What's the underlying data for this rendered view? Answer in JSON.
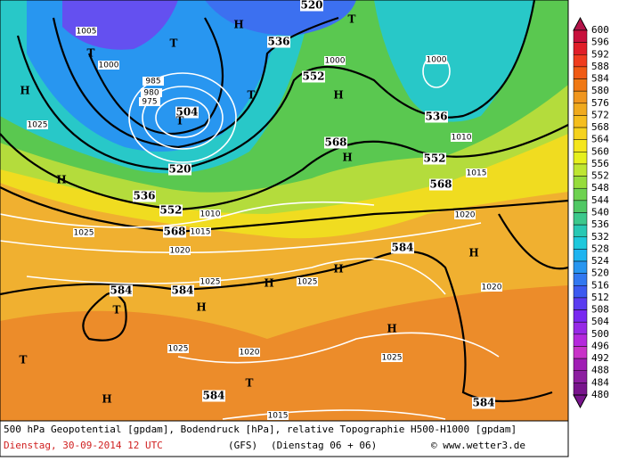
{
  "map": {
    "labels": [
      552,
      552,
      552,
      536,
      536,
      536,
      520,
      520,
      504,
      568,
      568,
      568,
      584,
      584,
      584,
      584,
      584,
      1025,
      1025,
      1025,
      1025,
      1025,
      1025,
      1020,
      1020,
      1020,
      1020,
      1015,
      1015,
      1015,
      1010,
      1010,
      1005,
      1000,
      1000,
      1000,
      985,
      980,
      975,
      "H",
      "H",
      "H",
      "H",
      "H",
      "H",
      "H",
      "H",
      "H",
      "H",
      "H",
      "T",
      "T",
      "T",
      "T",
      "T",
      "T",
      "T",
      "T"
    ],
    "legend": {
      "values": [
        600,
        596,
        592,
        588,
        584,
        580,
        576,
        572,
        568,
        564,
        560,
        556,
        552,
        548,
        544,
        540,
        536,
        532,
        528,
        524,
        520,
        516,
        512,
        508,
        504,
        500,
        496,
        492,
        488,
        484,
        480
      ],
      "colors": [
        "#b4144a",
        "#c8103c",
        "#e01e28",
        "#f03c1e",
        "#f05a14",
        "#f07814",
        "#f0961e",
        "#f0aa1e",
        "#f5be1e",
        "#f5d21e",
        "#f5e61e",
        "#e6f01e",
        "#bee632",
        "#96dc3c",
        "#6ed250",
        "#50c864",
        "#3cc88c",
        "#28c8b4",
        "#1ec8dc",
        "#1eb4f0",
        "#2896f0",
        "#3278f0",
        "#3c5af0",
        "#5a3cf0",
        "#7828f0",
        "#9628e6",
        "#b428dc",
        "#c832c8",
        "#a01eb4",
        "#8c1ea0",
        "#78148c"
      ]
    },
    "footer": {
      "description": "500 hPa Geopotential [gpdam], Bodendruck [hPa], relative Topographie H500-H1000 [gpdam]",
      "date": "Dienstag, 30-09-2014  12 UTC",
      "model": "(GFS)",
      "run": "(Dienstag 06 + 06)",
      "credit": "© www.wetter3.de"
    }
  }
}
